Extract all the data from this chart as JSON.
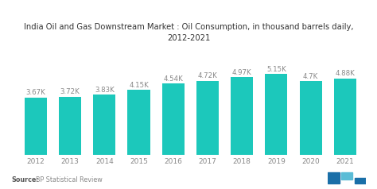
{
  "title_line1": "India Oil and Gas Downstream Market : Oil Consumption, in thousand barrels daily,",
  "title_line2": "2012-2021",
  "categories": [
    "2012",
    "2013",
    "2014",
    "2015",
    "2016",
    "2017",
    "2018",
    "2019",
    "2020",
    "2021"
  ],
  "values": [
    3.67,
    3.72,
    3.83,
    4.15,
    4.54,
    4.72,
    4.97,
    5.15,
    4.7,
    4.88
  ],
  "labels": [
    "3.67K",
    "3.72K",
    "3.83K",
    "4.15K",
    "4.54K",
    "4.72K",
    "4.97K",
    "5.15K",
    "4.7K",
    "4.88K"
  ],
  "bar_color": "#1CC8BB",
  "background_color": "#ffffff",
  "title_fontsize": 7.2,
  "label_fontsize": 6.2,
  "tick_fontsize": 6.5,
  "source_text_bold": "Source:",
  "source_text_normal": "  BP Statistical Review",
  "ylim": [
    0,
    6.5
  ]
}
